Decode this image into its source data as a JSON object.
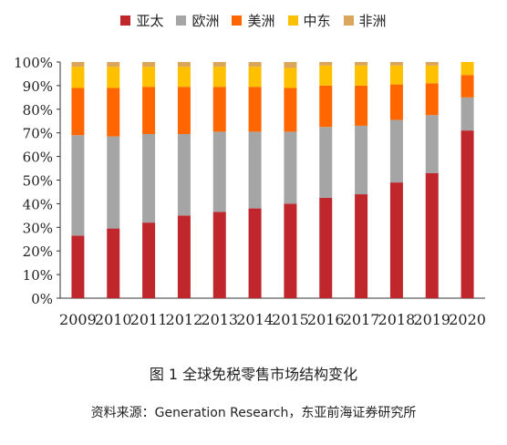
{
  "chart_data": {
    "type": "bar",
    "stacked": true,
    "categories": [
      "2009",
      "2010",
      "2011",
      "2012",
      "2013",
      "2014",
      "2015",
      "2016",
      "2017",
      "2018",
      "2019",
      "2020"
    ],
    "series": [
      {
        "name": "亚太",
        "color": "#C0272D",
        "values": [
          26.5,
          29.5,
          32,
          35,
          36.5,
          38,
          40,
          42.5,
          44,
          49,
          53,
          71
        ]
      },
      {
        "name": "欧洲",
        "color": "#A5A5A5",
        "values": [
          42.5,
          39,
          37.5,
          34.5,
          34,
          32.5,
          30.5,
          30,
          29,
          26.5,
          24.5,
          14
        ]
      },
      {
        "name": "美洲",
        "color": "#FF6600",
        "values": [
          20,
          20.5,
          20,
          20,
          19,
          19,
          18.5,
          17.5,
          17,
          15,
          13.5,
          9.5
        ]
      },
      {
        "name": "中东",
        "color": "#FFC000",
        "values": [
          9,
          9,
          8.5,
          8.5,
          8.5,
          8.5,
          8.5,
          8.5,
          8.5,
          8,
          7.5,
          5.5
        ]
      },
      {
        "name": "非洲",
        "color": "#D9A65C",
        "values": [
          2,
          2,
          2,
          2,
          2,
          2,
          2.5,
          1.5,
          1.5,
          1.5,
          1.5,
          0
        ]
      }
    ],
    "ylim": [
      0,
      100
    ],
    "yticks": [
      "0%",
      "10%",
      "20%",
      "30%",
      "40%",
      "50%",
      "60%",
      "70%",
      "80%",
      "90%",
      "100%"
    ],
    "legend_position": "top",
    "grid": false
  },
  "caption": "图 1  全球免税零售市场结构变化",
  "source": "资料来源：Generation Research，东亚前海证券研究所"
}
